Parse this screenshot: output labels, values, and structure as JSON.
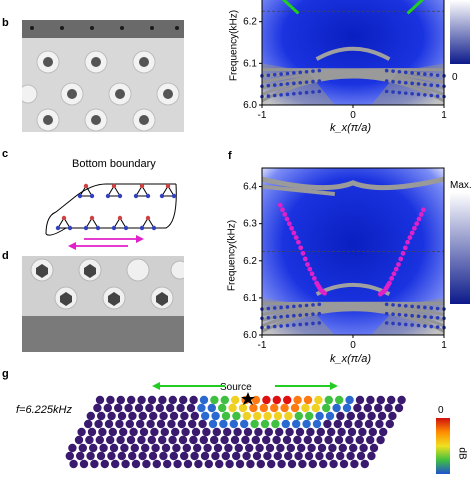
{
  "panels": {
    "b": "b",
    "c": "c",
    "d": "d",
    "f": "f",
    "g": "g"
  },
  "panel_c": {
    "title": "Bottom boundary"
  },
  "panel_g": {
    "source_label": "Source",
    "freq_label": "f=6.225kHz",
    "colorbar_ticks": [
      "0"
    ],
    "colorbar_unit": "dB"
  },
  "top_right_plot": {
    "ylabel": "Frequency(kHz)",
    "xlabel": "k_x(π/a)",
    "colorbar_ticks": [
      "0"
    ]
  },
  "bottom_right_plot": {
    "ylabel": "Frequency(kHz)",
    "xlabel": "k_x(π/a)",
    "colorbar_label": "Max."
  },
  "chart_data": [
    {
      "type": "scatter",
      "title": "",
      "xlabel": "k_x(π/a)",
      "ylabel": "Frequency(kHz)",
      "xlim": [
        -1,
        1
      ],
      "ylim": [
        6.0,
        6.3
      ],
      "x_ticks": [
        "-1",
        "0",
        "1"
      ],
      "y_ticks": [
        "6.0",
        "6.1",
        "6.2"
      ],
      "dashed_line_y": 6.225,
      "edge_state_color": "#22cc22",
      "edge_state": {
        "x": [
          -1.0,
          -0.8,
          -0.6
        ],
        "y": [
          6.3,
          6.26,
          6.22
        ]
      },
      "edge_state_right": {
        "x": [
          0.6,
          0.8,
          1.0
        ],
        "y": [
          6.22,
          6.26,
          6.3
        ]
      },
      "colormap": "white-blue"
    },
    {
      "type": "scatter",
      "title": "",
      "xlabel": "k_x(π/a)",
      "ylabel": "Frequency(kHz)",
      "xlim": [
        -1,
        1
      ],
      "ylim": [
        6.0,
        6.45
      ],
      "x_ticks": [
        "-1",
        "0",
        "1"
      ],
      "y_ticks": [
        "6.0",
        "6.1",
        "6.2",
        "6.3",
        "6.4"
      ],
      "dashed_line_y": 6.225,
      "edge_state_color": "#e020c8",
      "edge_state": {
        "x": [
          -0.8,
          -0.7,
          -0.6,
          -0.5,
          -0.4,
          -0.35,
          -0.3
        ],
        "y": [
          6.35,
          6.3,
          6.25,
          6.19,
          6.14,
          6.12,
          6.11
        ]
      },
      "edge_state_right": {
        "x": [
          0.3,
          0.35,
          0.4,
          0.5,
          0.6,
          0.7,
          0.8
        ],
        "y": [
          6.11,
          6.12,
          6.14,
          6.19,
          6.25,
          6.3,
          6.35
        ]
      },
      "colormap": "white-blue"
    }
  ]
}
